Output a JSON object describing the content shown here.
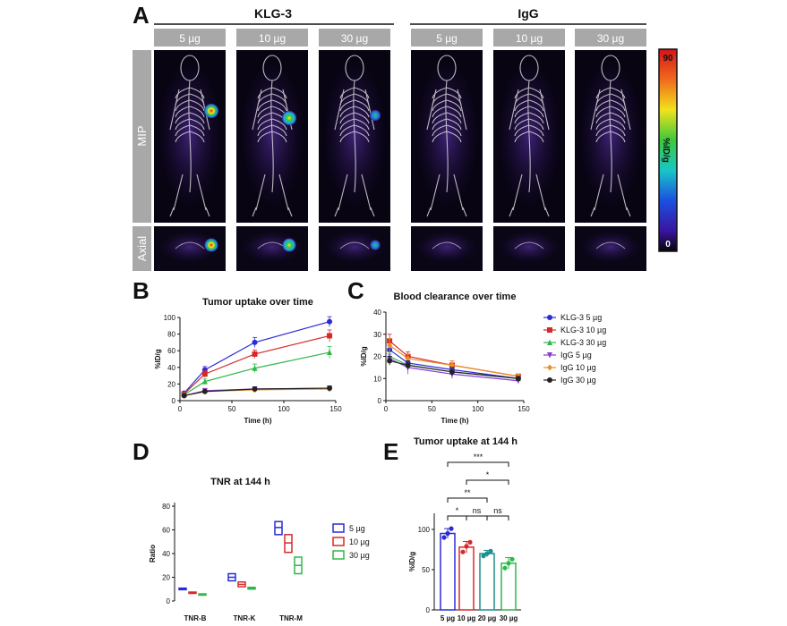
{
  "panels": {
    "a": "A",
    "b": "B",
    "c": "C",
    "d": "D",
    "e": "E"
  },
  "imaging": {
    "group1": "KLG-3",
    "group2": "IgG",
    "doses": [
      "5 µg",
      "10 µg",
      "30 µg",
      "5 µg",
      "10 µg",
      "30 µg"
    ],
    "rows": [
      "MIP",
      "Axial"
    ],
    "colorbar": {
      "max": "90",
      "min": "0",
      "unit": "%ID/g"
    },
    "hotspot_colors": [
      "#e8201c",
      "#f5e31c",
      "#2bc452",
      "#1a8fe0",
      "#3a2aa8"
    ]
  },
  "chart_data": [
    {
      "id": "B",
      "type": "line",
      "title": "Tumor uptake over time",
      "xlabel": "Time (h)",
      "ylabel": "%ID/g",
      "xlim": [
        0,
        150
      ],
      "ylim": [
        0,
        100
      ],
      "xticks": [
        "0",
        "50",
        "100",
        "150"
      ],
      "yticks": [
        "0",
        "20",
        "40",
        "60",
        "80",
        "100"
      ],
      "x": [
        4,
        24,
        72,
        144
      ],
      "series": [
        {
          "name": "KLG-3 5 µg",
          "color": "#2b2bd6",
          "marker": "circle",
          "values": [
            9,
            37,
            70,
            95
          ],
          "err": [
            2,
            4,
            6,
            6
          ]
        },
        {
          "name": "KLG-3 10 µg",
          "color": "#d62a2a",
          "marker": "square",
          "values": [
            8,
            32,
            56,
            78
          ],
          "err": [
            2,
            4,
            5,
            7
          ]
        },
        {
          "name": "KLG-3 30 µg",
          "color": "#2fb84a",
          "marker": "triangle",
          "values": [
            7,
            23,
            39,
            58
          ],
          "err": [
            2,
            3,
            5,
            7
          ]
        },
        {
          "name": "IgG 5 µg",
          "color": "#8a3ad6",
          "marker": "triangle-down",
          "values": [
            6,
            12,
            14,
            15
          ],
          "err": [
            1,
            1,
            2,
            2
          ]
        },
        {
          "name": "IgG 10 µg",
          "color": "#e8902a",
          "marker": "diamond",
          "values": [
            6,
            11,
            13,
            14
          ],
          "err": [
            1,
            1,
            2,
            2
          ]
        },
        {
          "name": "IgG 30 µg",
          "color": "#222222",
          "marker": "circle",
          "values": [
            6,
            11,
            14,
            15
          ],
          "err": [
            1,
            1,
            2,
            2
          ]
        }
      ]
    },
    {
      "id": "C",
      "type": "line",
      "title": "Blood clearance over time",
      "xlabel": "Time (h)",
      "ylabel": "%ID/g",
      "xlim": [
        0,
        150
      ],
      "ylim": [
        0,
        40
      ],
      "xticks": [
        "0",
        "50",
        "100",
        "150"
      ],
      "yticks": [
        "0",
        "10",
        "20",
        "30",
        "40"
      ],
      "x": [
        4,
        24,
        72,
        144
      ],
      "series": [
        {
          "name": "KLG-3 5 µg",
          "color": "#2b2bd6",
          "marker": "circle",
          "values": [
            23,
            17,
            14,
            10
          ],
          "err": [
            2,
            2,
            2,
            1
          ]
        },
        {
          "name": "KLG-3 10 µg",
          "color": "#d62a2a",
          "marker": "square",
          "values": [
            27,
            20,
            16,
            11
          ],
          "err": [
            3,
            2,
            2,
            1
          ]
        },
        {
          "name": "KLG-3 30 µg",
          "color": "#2fb84a",
          "marker": "triangle",
          "values": [
            20,
            16,
            13,
            10
          ],
          "err": [
            2,
            2,
            2,
            1
          ]
        },
        {
          "name": "IgG 5 µg",
          "color": "#8a3ad6",
          "marker": "triangle-down",
          "values": [
            19,
            15,
            12,
            9
          ],
          "err": [
            2,
            3,
            2,
            1
          ]
        },
        {
          "name": "IgG 10 µg",
          "color": "#e8902a",
          "marker": "diamond",
          "values": [
            25,
            19,
            16,
            11
          ],
          "err": [
            3,
            2,
            2,
            1
          ]
        },
        {
          "name": "IgG 30 µg",
          "color": "#222222",
          "marker": "circle",
          "values": [
            18,
            16,
            13,
            10
          ],
          "err": [
            2,
            2,
            2,
            1
          ]
        }
      ]
    },
    {
      "id": "D",
      "type": "box",
      "title": "TNR at 144 h",
      "ylabel": "Ratio",
      "ylim": [
        0,
        80
      ],
      "yticks": [
        "0",
        "20",
        "40",
        "60",
        "80"
      ],
      "categories": [
        "TNR-B",
        "TNR-K",
        "TNR-M"
      ],
      "series": [
        {
          "name": "5 µg",
          "color": "#2b2bd6",
          "boxes": [
            [
              9.5,
              10.2,
              10.8
            ],
            [
              17,
              20,
              23
            ],
            [
              56,
              62,
              67
            ]
          ]
        },
        {
          "name": "10 µg",
          "color": "#d62a2a",
          "boxes": [
            [
              6.5,
              7,
              7.5
            ],
            [
              12,
              14,
              16
            ],
            [
              41,
              49,
              56
            ]
          ]
        },
        {
          "name": "30 µg",
          "color": "#2fb84a",
          "boxes": [
            [
              5,
              5.5,
              6
            ],
            [
              10,
              10.8,
              11.5
            ],
            [
              23,
              30,
              37
            ]
          ]
        }
      ]
    },
    {
      "id": "E",
      "type": "bar",
      "title": "Tumor uptake at 144 h",
      "ylabel": "%ID/g",
      "ylim": [
        0,
        120
      ],
      "yticks": [
        "0",
        "50",
        "100"
      ],
      "categories": [
        "5 µg",
        "10 µg",
        "20 µg",
        "30 µg"
      ],
      "colors": [
        "#2b2bd6",
        "#d62a2a",
        "#1f8e8e",
        "#2fb84a"
      ],
      "values": [
        95,
        78,
        70,
        58
      ],
      "err": [
        6,
        7,
        4,
        7
      ],
      "points": [
        [
          90,
          95,
          101
        ],
        [
          72,
          79,
          84
        ],
        [
          67,
          70,
          73
        ],
        [
          52,
          58,
          63
        ]
      ],
      "significance": [
        {
          "from": 0,
          "to": 1,
          "label": "*"
        },
        {
          "from": 1,
          "to": 2,
          "label": "ns"
        },
        {
          "from": 2,
          "to": 3,
          "label": "ns"
        },
        {
          "from": 0,
          "to": 2,
          "label": "**"
        },
        {
          "from": 1,
          "to": 3,
          "label": "*"
        },
        {
          "from": 0,
          "to": 3,
          "label": "***"
        }
      ]
    }
  ]
}
